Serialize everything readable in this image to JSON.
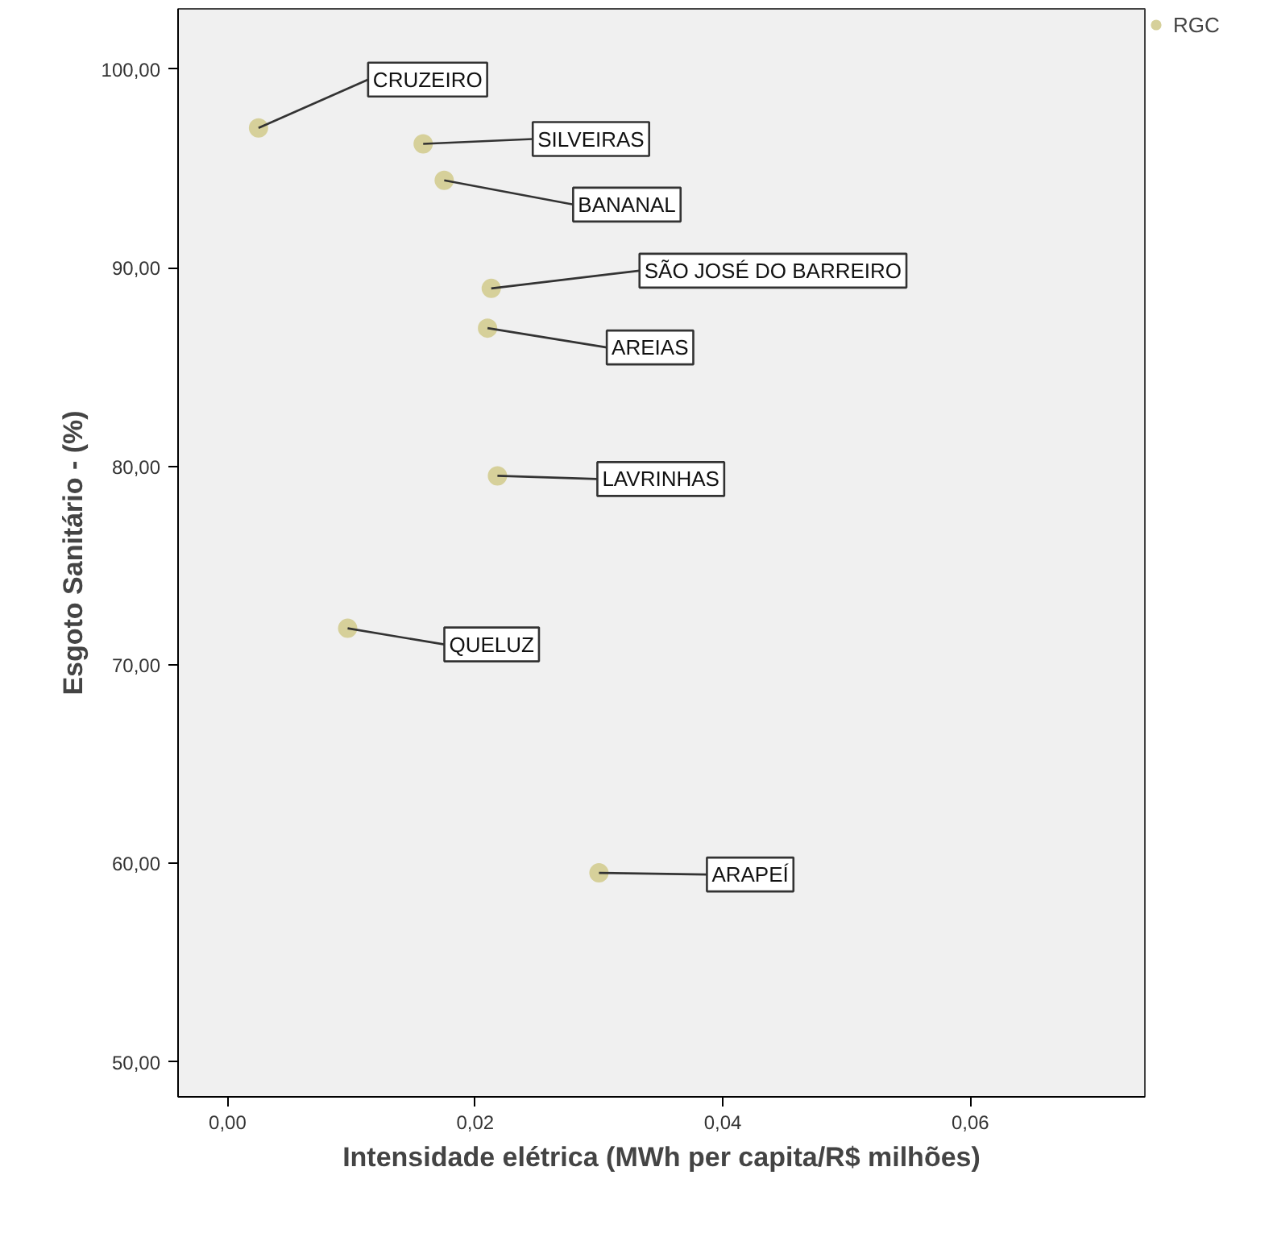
{
  "chart_data": {
    "type": "scatter",
    "xlabel": "Intensidade elétrica (MWh per capita/R$ milhões)",
    "ylabel": "Esgoto Sanitário - (%)",
    "x": [
      0.0025,
      0.0158,
      0.0175,
      0.0213,
      0.021,
      0.0218,
      0.0097,
      0.03
    ],
    "series": [
      {
        "name": "RGC",
        "color": "#d6d09a",
        "values": [
          97.04,
          96.24,
          94.4,
          88.96,
          86.96,
          79.52,
          71.84,
          59.52
        ]
      }
    ],
    "annotations": [
      {
        "text": "CRUZEIRO",
        "x": 0.0025,
        "y": 97.04
      },
      {
        "text": "SILVEIRAS",
        "x": 0.0158,
        "y": 96.24
      },
      {
        "text": "BANANAL",
        "x": 0.0175,
        "y": 94.4
      },
      {
        "text": "SÃO JOSÉ DO BARREIRO",
        "x": 0.0213,
        "y": 88.96
      },
      {
        "text": "AREIAS",
        "x": 0.021,
        "y": 86.96
      },
      {
        "text": "LAVRINHAS",
        "x": 0.0218,
        "y": 79.52
      },
      {
        "text": "QUELUZ",
        "x": 0.0097,
        "y": 71.84
      },
      {
        "text": "ARAPEÍ",
        "x": 0.03,
        "y": 59.52
      }
    ],
    "xlim": [
      -0.004,
      0.0741
    ],
    "ylim": [
      48.24,
      103.04
    ],
    "xticks": [
      {
        "value": 0,
        "label": "0,00"
      },
      {
        "value": 0.02,
        "label": "0,02"
      },
      {
        "value": 0.04,
        "label": "0,04"
      },
      {
        "value": 0.06,
        "label": "0,06"
      }
    ],
    "yticks": [
      {
        "value": 50,
        "label": "50,00"
      },
      {
        "value": 60,
        "label": "60,00"
      },
      {
        "value": 70,
        "label": "70,00"
      },
      {
        "value": 80,
        "label": "80,00"
      },
      {
        "value": 90,
        "label": "90,00"
      },
      {
        "value": 100,
        "label": "100,00"
      }
    ],
    "grid": false,
    "legend": "top right",
    "marker": "circle"
  }
}
